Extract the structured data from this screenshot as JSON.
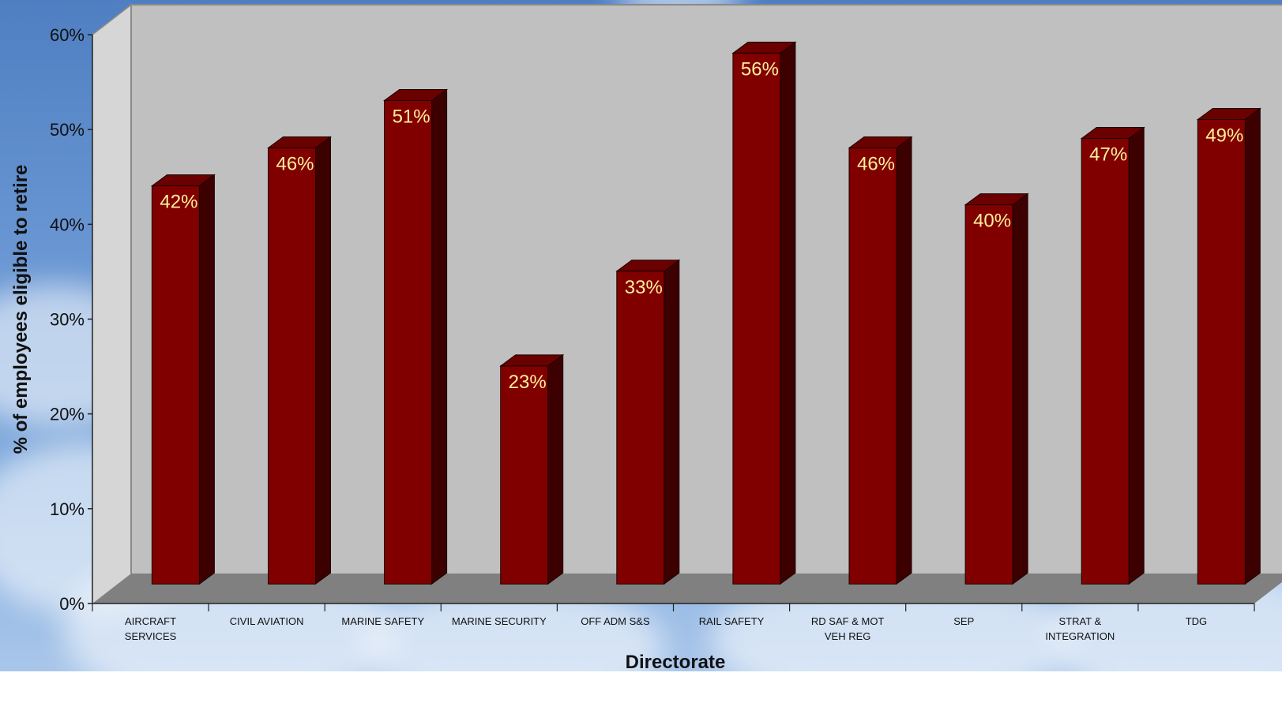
{
  "chart_data": {
    "type": "bar",
    "title": "",
    "xlabel": "Directorate",
    "ylabel": "% of employees eligible to retire",
    "ylim": [
      0,
      60
    ],
    "yticks": [
      "0%",
      "10%",
      "20%",
      "30%",
      "40%",
      "50%",
      "60%"
    ],
    "categories": [
      "AIRCRAFT SERVICES",
      "CIVIL AVIATION",
      "MARINE SAFETY",
      "MARINE SECURITY",
      "OFF ADM S&S",
      "RAIL SAFETY",
      "RD SAF & MOT VEH REG",
      "SEP",
      "STRAT & INTEGRATION",
      "TDG"
    ],
    "category_lines": [
      [
        "AIRCRAFT",
        "SERVICES"
      ],
      [
        "CIVIL AVIATION"
      ],
      [
        "MARINE SAFETY"
      ],
      [
        "MARINE SECURITY"
      ],
      [
        "OFF ADM S&S"
      ],
      [
        "RAIL SAFETY"
      ],
      [
        "RD SAF & MOT",
        "VEH REG"
      ],
      [
        "SEP"
      ],
      [
        "STRAT &",
        "INTEGRATION"
      ],
      [
        "TDG"
      ]
    ],
    "values": [
      42,
      46,
      51,
      23,
      33,
      56,
      46,
      40,
      47,
      49
    ],
    "data_labels": [
      "42%",
      "46%",
      "51%",
      "23%",
      "33%",
      "56%",
      "46%",
      "40%",
      "47%",
      "49%"
    ],
    "grid": false,
    "legend": "none",
    "colors": {
      "bar_front": "#800000",
      "bar_side": "#3d0000",
      "bar_top": "#6a0000",
      "back_wall": "#c0c0c0",
      "floor": "#808080",
      "data_label": "#ffef99"
    }
  }
}
